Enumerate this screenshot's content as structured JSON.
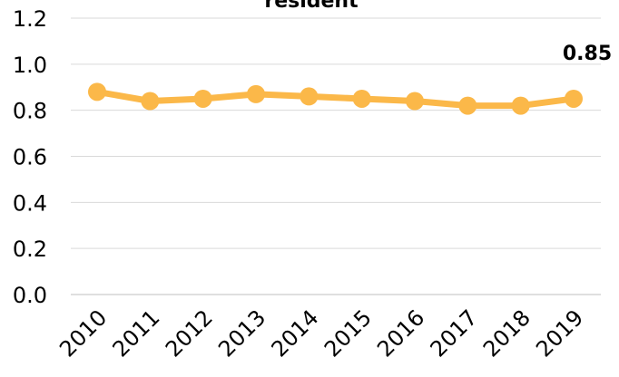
{
  "chart_data": {
    "type": "line",
    "title": "resident",
    "xlabel": "",
    "ylabel": "",
    "x": [
      "2010",
      "2011",
      "2012",
      "2013",
      "2014",
      "2015",
      "2016",
      "2017",
      "2018",
      "2019"
    ],
    "series": [
      {
        "values": [
          0.88,
          0.84,
          0.85,
          0.87,
          0.86,
          0.85,
          0.84,
          0.82,
          0.82,
          0.85
        ],
        "color": "#FBB849"
      }
    ],
    "ylim": [
      0,
      1.2
    ],
    "yticks": [
      "0.0",
      "0.2",
      "0.4",
      "0.6",
      "0.8",
      "1.0",
      "1.2"
    ],
    "grid": true,
    "last_point_label": "0.85"
  }
}
